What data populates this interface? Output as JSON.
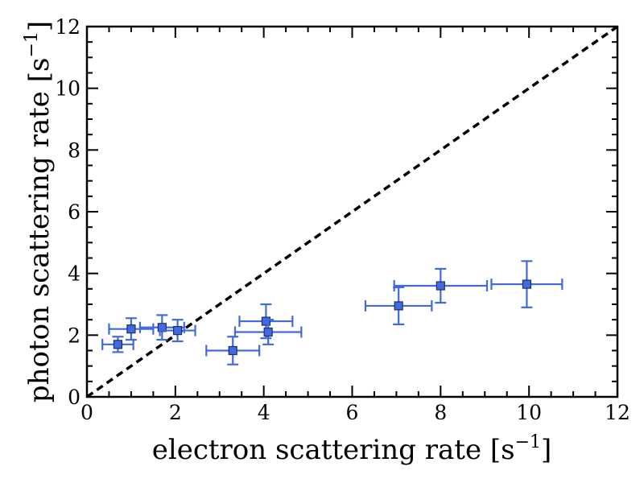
{
  "chart_data": {
    "type": "scatter",
    "xlabel": "electron scattering rate [s",
    "ylabel": "photon scattering rate [s",
    "label_unit_exponent": "−1",
    "label_unit_close": "]",
    "xlim": [
      0,
      12
    ],
    "ylim": [
      0,
      12
    ],
    "x_ticks": [
      "0",
      "2",
      "4",
      "6",
      "8",
      "10",
      "12"
    ],
    "y_ticks": [
      "0",
      "2",
      "4",
      "6",
      "8",
      "10",
      "12"
    ],
    "grid": false,
    "marker_color": "#4169E1",
    "marker_edge_color": "#1f2f66",
    "reference_line": {
      "x": [
        0,
        12
      ],
      "y": [
        0,
        12
      ],
      "style": "dashed",
      "color": "#000000"
    },
    "points": [
      {
        "x": 0.7,
        "y": 1.7,
        "xerr": 0.35,
        "yerr": 0.25
      },
      {
        "x": 1.0,
        "y": 2.2,
        "xerr": 0.5,
        "yerr": 0.35
      },
      {
        "x": 1.7,
        "y": 2.25,
        "xerr": 0.5,
        "yerr": 0.4
      },
      {
        "x": 2.05,
        "y": 2.15,
        "xerr": 0.4,
        "yerr": 0.35
      },
      {
        "x": 3.3,
        "y": 1.5,
        "xerr": 0.6,
        "yerr": 0.45
      },
      {
        "x": 4.05,
        "y": 2.45,
        "xerr": 0.6,
        "yerr": 0.55
      },
      {
        "x": 4.1,
        "y": 2.1,
        "xerr": 0.75,
        "yerr": 0.4
      },
      {
        "x": 7.05,
        "y": 2.95,
        "xerr": 0.75,
        "yerr": 0.6
      },
      {
        "x": 8.0,
        "y": 3.6,
        "xerr": 1.05,
        "yerr": 0.55
      },
      {
        "x": 9.95,
        "y": 3.65,
        "xerr": 0.8,
        "yerr": 0.75
      }
    ]
  }
}
